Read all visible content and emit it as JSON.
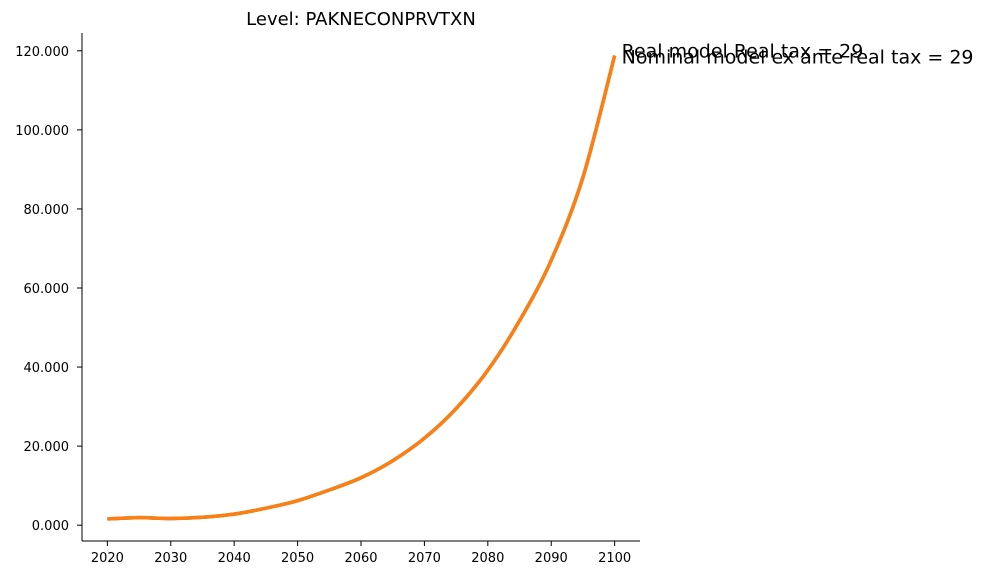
{
  "chart_data": {
    "type": "line",
    "title": "Level: PAKNECONPRVTXN",
    "xlabel": "",
    "ylabel": "",
    "xlim": [
      2016,
      2104
    ],
    "ylim": [
      -4000,
      124500
    ],
    "x_ticks": [
      2020,
      2030,
      2040,
      2050,
      2060,
      2070,
      2080,
      2090,
      2100
    ],
    "y_ticks": [
      0,
      20000,
      40000,
      60000,
      80000,
      100000,
      120000
    ],
    "y_tick_labels": [
      "0.000",
      "20.000",
      "40.000",
      "60.000",
      "80.000",
      "100.000",
      "120.000"
    ],
    "grid": false,
    "legend": "none",
    "x": [
      2020,
      2025,
      2030,
      2035,
      2040,
      2045,
      2050,
      2055,
      2060,
      2065,
      2070,
      2075,
      2080,
      2085,
      2090,
      2095,
      2100
    ],
    "series": [
      {
        "name": "Real model Real tax = 29",
        "color": "#1f77b4",
        "values": [
          1600,
          1900,
          1700,
          2000,
          2800,
          4300,
          6200,
          8900,
          12000,
          16300,
          22000,
          29500,
          39200,
          51700,
          67000,
          88000,
          118800
        ]
      },
      {
        "name": "Nominal model ex ante real tax = 29",
        "color": "#ff7f0e",
        "values": [
          1600,
          1900,
          1700,
          2000,
          2800,
          4300,
          6200,
          8900,
          12000,
          16300,
          22000,
          29500,
          39200,
          51700,
          67000,
          88000,
          118800
        ]
      }
    ]
  }
}
